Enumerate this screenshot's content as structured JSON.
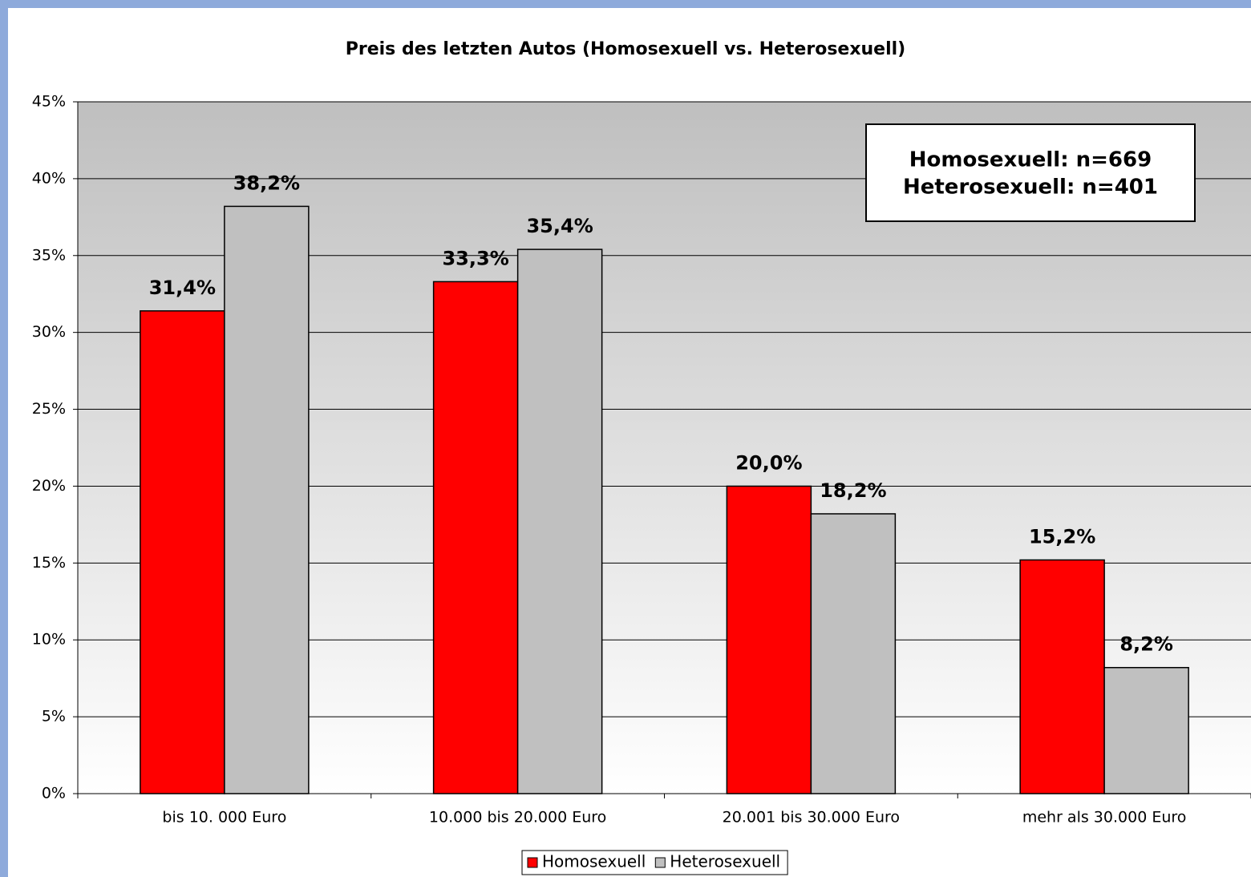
{
  "chart_data": {
    "type": "bar",
    "title": "Preis des letzten Autos (Homosexuell vs. Heterosexuell)",
    "categories": [
      "bis 10. 000 Euro",
      "10.000 bis 20.000 Euro",
      "20.001 bis 30.000 Euro",
      "mehr als 30.000 Euro"
    ],
    "series": [
      {
        "name": "Homosexuell",
        "color": "#ff0000",
        "values": [
          31.4,
          33.3,
          20.0,
          15.2
        ],
        "value_labels": [
          "31,4%",
          "33,3%",
          "20,0%",
          "15,2%"
        ]
      },
      {
        "name": "Heterosexuell",
        "color": "#c0c0c0",
        "values": [
          38.2,
          35.4,
          18.2,
          8.2
        ],
        "value_labels": [
          "38,2%",
          "35,4%",
          "18,2%",
          "8,2%"
        ]
      }
    ],
    "ylim": [
      0,
      45
    ],
    "yticks": [
      {
        "value": 0,
        "label": "0%"
      },
      {
        "value": 5,
        "label": "5%"
      },
      {
        "value": 10,
        "label": "10%"
      },
      {
        "value": 15,
        "label": "15%"
      },
      {
        "value": 20,
        "label": "20%"
      },
      {
        "value": 25,
        "label": "25%"
      },
      {
        "value": 30,
        "label": "30%"
      },
      {
        "value": 35,
        "label": "35%"
      },
      {
        "value": 40,
        "label": "40%"
      },
      {
        "value": 45,
        "label": "45%"
      }
    ],
    "grid": true,
    "legend": "bottom",
    "annotations": [
      "Homosexuell: n=669",
      "Heterosexuell: n=401"
    ]
  }
}
